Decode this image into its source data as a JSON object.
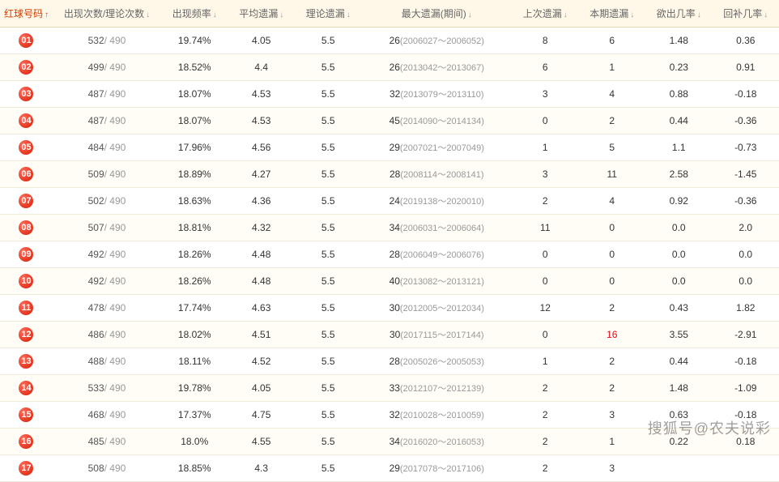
{
  "columns": [
    {
      "label": "红球号码",
      "active": true,
      "dir": "up"
    },
    {
      "label": "出现次数/理论次数",
      "active": false,
      "dir": "down"
    },
    {
      "label": "出现频率",
      "active": false,
      "dir": "down"
    },
    {
      "label": "平均遗漏",
      "active": false,
      "dir": "down"
    },
    {
      "label": "理论遗漏",
      "active": false,
      "dir": "down"
    },
    {
      "label": "最大遗漏(期间)",
      "active": false,
      "dir": "down"
    },
    {
      "label": "上次遗漏",
      "active": false,
      "dir": "down"
    },
    {
      "label": "本期遗漏",
      "active": false,
      "dir": "down"
    },
    {
      "label": "欲出几率",
      "active": false,
      "dir": "down"
    },
    {
      "label": "回补几率",
      "active": false,
      "dir": "down"
    }
  ],
  "theory_count": 490,
  "theory_miss": "5.5",
  "highlight_color": "#e60012",
  "rows": [
    {
      "n": "01",
      "cnt": 532,
      "freq": "19.74%",
      "avg": "4.05",
      "max": "26",
      "period": "(2006027～2006052)",
      "last": "8",
      "cur": "6",
      "out": "1.48",
      "back": "0.36"
    },
    {
      "n": "02",
      "cnt": 499,
      "freq": "18.52%",
      "avg": "4.4",
      "max": "26",
      "period": "(2013042～2013067)",
      "last": "6",
      "cur": "1",
      "out": "0.23",
      "back": "0.91"
    },
    {
      "n": "03",
      "cnt": 487,
      "freq": "18.07%",
      "avg": "4.53",
      "max": "32",
      "period": "(2013079～2013110)",
      "last": "3",
      "cur": "4",
      "out": "0.88",
      "back": "-0.18"
    },
    {
      "n": "04",
      "cnt": 487,
      "freq": "18.07%",
      "avg": "4.53",
      "max": "45",
      "period": "(2014090～2014134)",
      "last": "0",
      "cur": "2",
      "out": "0.44",
      "back": "-0.36"
    },
    {
      "n": "05",
      "cnt": 484,
      "freq": "17.96%",
      "avg": "4.56",
      "max": "29",
      "period": "(2007021～2007049)",
      "last": "1",
      "cur": "5",
      "out": "1.1",
      "back": "-0.73"
    },
    {
      "n": "06",
      "cnt": 509,
      "freq": "18.89%",
      "avg": "4.27",
      "max": "28",
      "period": "(2008114～2008141)",
      "last": "3",
      "cur": "11",
      "out": "2.58",
      "back": "-1.45"
    },
    {
      "n": "07",
      "cnt": 502,
      "freq": "18.63%",
      "avg": "4.36",
      "max": "24",
      "period": "(2019138～2020010)",
      "last": "2",
      "cur": "4",
      "out": "0.92",
      "back": "-0.36"
    },
    {
      "n": "08",
      "cnt": 507,
      "freq": "18.81%",
      "avg": "4.32",
      "max": "34",
      "period": "(2006031～2006064)",
      "last": "11",
      "cur": "0",
      "out": "0.0",
      "back": "2.0"
    },
    {
      "n": "09",
      "cnt": 492,
      "freq": "18.26%",
      "avg": "4.48",
      "max": "28",
      "period": "(2006049～2006076)",
      "last": "0",
      "cur": "0",
      "out": "0.0",
      "back": "0.0"
    },
    {
      "n": "10",
      "cnt": 492,
      "freq": "18.26%",
      "avg": "4.48",
      "max": "40",
      "period": "(2013082～2013121)",
      "last": "0",
      "cur": "0",
      "out": "0.0",
      "back": "0.0"
    },
    {
      "n": "11",
      "cnt": 478,
      "freq": "17.74%",
      "avg": "4.63",
      "max": "30",
      "period": "(2012005～2012034)",
      "last": "12",
      "cur": "2",
      "out": "0.43",
      "back": "1.82"
    },
    {
      "n": "12",
      "cnt": 486,
      "freq": "18.02%",
      "avg": "4.51",
      "max": "30",
      "period": "(2017115～2017144)",
      "last": "0",
      "cur": "16",
      "cur_hl": true,
      "out": "3.55",
      "back": "-2.91"
    },
    {
      "n": "13",
      "cnt": 488,
      "freq": "18.11%",
      "avg": "4.52",
      "max": "28",
      "period": "(2005026～2005053)",
      "last": "1",
      "cur": "2",
      "out": "0.44",
      "back": "-0.18"
    },
    {
      "n": "14",
      "cnt": 533,
      "freq": "19.78%",
      "avg": "4.05",
      "max": "33",
      "period": "(2012107～2012139)",
      "last": "2",
      "cur": "2",
      "out": "1.48",
      "back": "-1.09"
    },
    {
      "n": "15",
      "cnt": 468,
      "freq": "17.37%",
      "avg": "4.75",
      "max": "32",
      "period": "(2010028～2010059)",
      "last": "2",
      "cur": "3",
      "out": "0.63",
      "back": "-0.18"
    },
    {
      "n": "16",
      "cnt": 485,
      "freq": "18.0%",
      "avg": "4.55",
      "max": "34",
      "period": "(2016020～2016053)",
      "last": "2",
      "cur": "1",
      "out": "0.22",
      "back": "0.18"
    },
    {
      "n": "17",
      "cnt": 508,
      "freq": "18.85%",
      "avg": "4.3",
      "max": "29",
      "period": "(2017078～2017106)",
      "last": "2",
      "cur": "3",
      "out": "",
      "back": ""
    }
  ],
  "watermark": "搜狐号@农夫说彩"
}
